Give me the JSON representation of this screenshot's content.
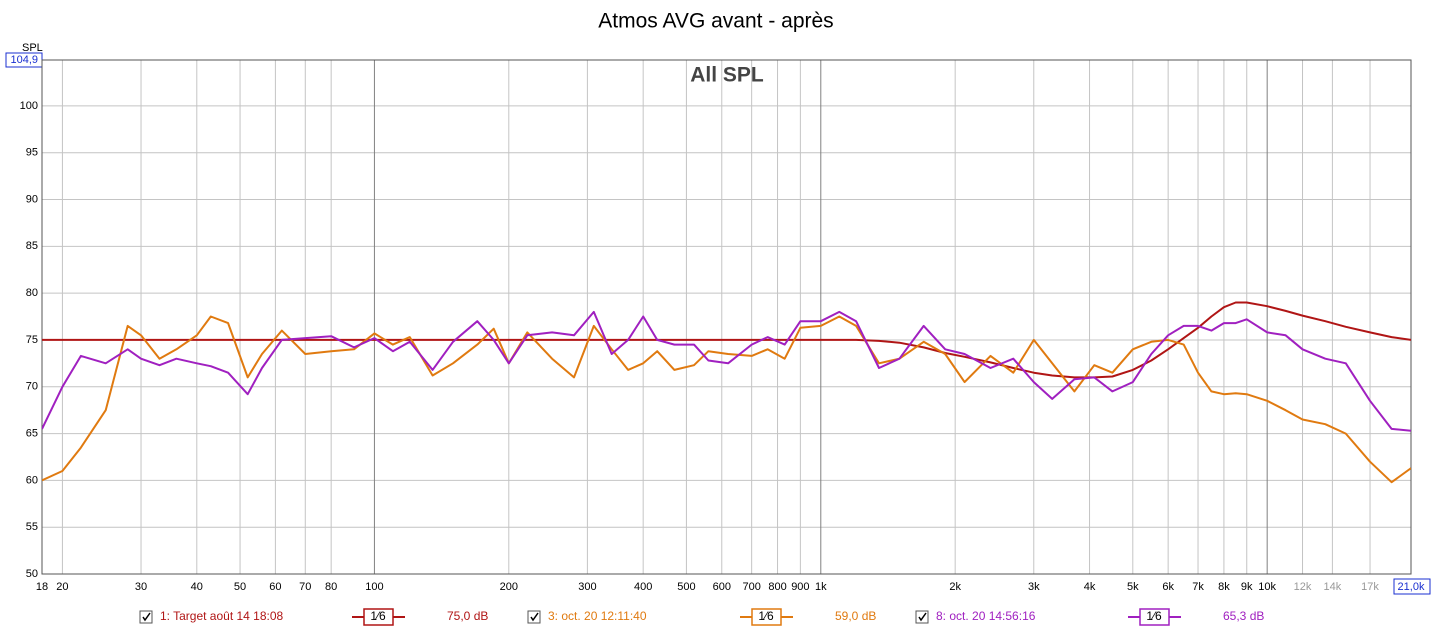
{
  "chart_data": {
    "type": "line",
    "title": "Atmos AVG avant - après",
    "subtitle": "All SPL",
    "y_label": "SPL",
    "x_scale": "log",
    "grid": true,
    "xlim": [
      18,
      21000
    ],
    "ylim": [
      50,
      104.9
    ],
    "yticks": [
      50,
      55,
      60,
      65,
      70,
      75,
      80,
      85,
      90,
      95,
      100,
      {
        "value": 104.9,
        "label": "104,9"
      }
    ],
    "xticks": [
      18,
      20,
      30,
      40,
      50,
      60,
      70,
      80,
      100,
      200,
      300,
      400,
      500,
      600,
      700,
      800,
      900,
      {
        "value": 1000,
        "label": "1k"
      },
      {
        "value": 2000,
        "label": "2k"
      },
      {
        "value": 3000,
        "label": "3k"
      },
      {
        "value": 4000,
        "label": "4k"
      },
      {
        "value": 5000,
        "label": "5k"
      },
      {
        "value": 6000,
        "label": "6k"
      },
      {
        "value": 7000,
        "label": "7k"
      },
      {
        "value": 8000,
        "label": "8k"
      },
      {
        "value": 9000,
        "label": "9k"
      },
      {
        "value": 10000,
        "label": "10k"
      },
      {
        "value": 12000,
        "label": "12k"
      },
      {
        "value": 14000,
        "label": "14k"
      },
      {
        "value": 17000,
        "label": "17k"
      },
      {
        "value": 21000,
        "label": "21,0k"
      }
    ],
    "x": [
      18,
      20,
      22,
      25,
      28,
      30,
      33,
      36,
      40,
      43,
      47,
      52,
      56,
      62,
      70,
      80,
      90,
      100,
      110,
      120,
      135,
      150,
      170,
      185,
      200,
      220,
      250,
      280,
      310,
      340,
      370,
      400,
      430,
      470,
      520,
      560,
      620,
      700,
      760,
      830,
      900,
      1000,
      1100,
      1200,
      1350,
      1500,
      1700,
      1900,
      2100,
      2400,
      2700,
      3000,
      3300,
      3700,
      4100,
      4500,
      5000,
      5500,
      6000,
      6500,
      7000,
      7500,
      8000,
      8500,
      9000,
      10000,
      11000,
      12000,
      13500,
      15000,
      17000,
      19000,
      21000
    ],
    "series": [
      {
        "name": "1: Target août 14 18:08",
        "smoothing": "1⁄6",
        "level": "75,0 dB",
        "color": "#b01515",
        "values": [
          75,
          75,
          75,
          75,
          75,
          75,
          75,
          75,
          75,
          75,
          75,
          75,
          75,
          75,
          75,
          75,
          75,
          75,
          75,
          75,
          75,
          75,
          75,
          75,
          75,
          75,
          75,
          75,
          75,
          75,
          75,
          75,
          75,
          75,
          75,
          75,
          75,
          75,
          75,
          75,
          75,
          75,
          75,
          75,
          74.9,
          74.7,
          74.2,
          73.6,
          73.2,
          72.6,
          72,
          71.5,
          71.2,
          71,
          71,
          71.1,
          71.8,
          72.8,
          74,
          75.2,
          76.3,
          77.5,
          78.5,
          79,
          79,
          78.6,
          78.1,
          77.6,
          77,
          76.4,
          75.8,
          75.3,
          75
        ]
      },
      {
        "name": "3: oct. 20 12:11:40",
        "smoothing": "1⁄6",
        "level": "59,0 dB",
        "color": "#e07a10",
        "values": [
          60,
          61,
          63.5,
          67.5,
          76.5,
          75.5,
          73,
          74,
          75.5,
          77.5,
          76.8,
          71,
          73.5,
          76,
          73.5,
          73.8,
          74,
          75.7,
          74.5,
          75.3,
          71.2,
          72.5,
          74.5,
          76.2,
          72.5,
          75.8,
          73,
          71,
          76.5,
          74,
          71.8,
          72.5,
          73.8,
          71.8,
          72.3,
          73.8,
          73.5,
          73.3,
          74,
          73,
          76.3,
          76.5,
          77.5,
          76.5,
          72.5,
          73,
          74.8,
          73.5,
          70.5,
          73.3,
          71.5,
          75,
          72.5,
          69.5,
          72.3,
          71.5,
          74,
          74.8,
          75,
          74.5,
          71.5,
          69.5,
          69.2,
          69.3,
          69.2,
          68.5,
          67.5,
          66.5,
          66,
          65,
          62,
          59.8,
          61.3
        ]
      },
      {
        "name": "8: oct. 20 14:56:16",
        "smoothing": "1⁄6",
        "level": "65,3 dB",
        "color": "#a020c0",
        "values": [
          65.5,
          70,
          73.3,
          72.5,
          74,
          73,
          72.3,
          73,
          72.5,
          72.2,
          71.5,
          69.2,
          72,
          75,
          75.2,
          75.4,
          74.2,
          75.2,
          73.8,
          74.8,
          71.8,
          74.8,
          77,
          75,
          72.5,
          75.5,
          75.8,
          75.5,
          78,
          73.5,
          75,
          77.5,
          75,
          74.5,
          74.5,
          72.8,
          72.5,
          74.5,
          75.3,
          74.5,
          77,
          77,
          78,
          77,
          72,
          73,
          76.5,
          74,
          73.5,
          72,
          73,
          70.5,
          68.7,
          70.8,
          71,
          69.5,
          70.5,
          73.5,
          75.5,
          76.5,
          76.5,
          76,
          76.8,
          76.8,
          77.2,
          75.8,
          75.5,
          74,
          73,
          72.5,
          68.5,
          65.5,
          65.3
        ]
      }
    ]
  }
}
